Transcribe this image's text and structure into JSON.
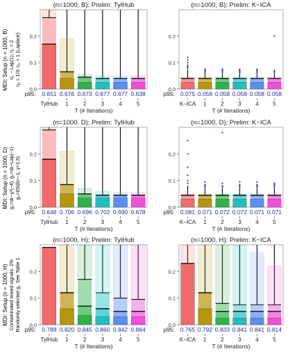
{
  "figure": {
    "rows": [
      {
        "row_label_lines": [
          "MDI: Setup (n = 1000, B)",
          "η₁ ~ Lap(1); η₁ = 2",
          "η₂ = 1/3; η₂ = 1 (Laplace)"
        ]
      },
      {
        "row_label_lines": [
          "MDI: Setup (n = 1000, D)",
          "g₁=sk−χ²(−4); g₂=sk−Lap(−1)",
          "g₃=tlSt(b=−1, γ=1.5)"
        ]
      },
      {
        "row_label_lines": [
          "MDI: Setup (n = 1000, H)",
          "Contaminated mixed signals: 2%",
          "Randomly selected gᵢ. See Table 1"
        ]
      }
    ]
  },
  "chart_data": [
    {
      "type": "bar",
      "title": "(n=1000, B);  Prelim: TylHub",
      "xlabel": "T (# Iterations)",
      "categories": [
        "TylHub",
        "1",
        "2",
        "3",
        "4",
        "5"
      ],
      "p95_label": "p95:",
      "p95": [
        "0.651",
        "0.676",
        "0.673",
        "0.677",
        "0.677",
        "0.638"
      ],
      "ylim": [
        0,
        0.3
      ],
      "yticks": [
        "0.0",
        "0.1",
        "0.2"
      ],
      "colors": [
        "#f26b6b",
        "#b8960c",
        "#2db34a",
        "#20c0c0",
        "#5b8ff0",
        "#f050d8"
      ],
      "bars": [
        {
          "value": 0.17,
          "median": 0.17,
          "upper": 0.27,
          "bar_top": 0.3,
          "whisker": 0.3,
          "outliers": []
        },
        {
          "value": 0.04,
          "median": 0.065,
          "upper": 0.065,
          "bar_top": 0.19,
          "whisker": 0.3,
          "outliers": []
        },
        {
          "value": 0.025,
          "median": 0.045,
          "upper": 0.045,
          "bar_top": 0.055,
          "whisker": 0.3,
          "outliers": []
        },
        {
          "value": 0.025,
          "median": 0.04,
          "upper": 0.04,
          "bar_top": 0.05,
          "whisker": 0.3,
          "outliers": []
        },
        {
          "value": 0.025,
          "median": 0.04,
          "upper": 0.04,
          "bar_top": 0.05,
          "whisker": 0.3,
          "outliers": []
        },
        {
          "value": 0.025,
          "median": 0.04,
          "upper": 0.04,
          "bar_top": 0.05,
          "whisker": 0.3,
          "outliers": []
        }
      ]
    },
    {
      "type": "bar",
      "title": "(n=1000, B);  Prelim: K−ICA",
      "xlabel": "T (# Iterations)",
      "categories": [
        "K−ICA",
        "1",
        "2",
        "3",
        "4",
        "5"
      ],
      "p95_label": "p95:",
      "p95": [
        "0.075",
        "0.058",
        "0.058",
        "0.058",
        "0.058",
        "0.058"
      ],
      "ylim": [
        0,
        0.3
      ],
      "yticks": [
        "0.0",
        "0.1",
        "0.2"
      ],
      "colors": [
        "#f26b6b",
        "#b8960c",
        "#2db34a",
        "#20c0c0",
        "#5b8ff0",
        "#f050d8"
      ],
      "bars": [
        {
          "value": 0.025,
          "median": 0.04,
          "upper": 0.04,
          "bar_top": 0.045,
          "whisker": 0.075,
          "outliers": [
            0.08,
            0.085,
            0.09,
            0.1,
            0.11,
            0.12
          ]
        },
        {
          "value": 0.025,
          "median": 0.04,
          "upper": 0.04,
          "bar_top": 0.045,
          "whisker": 0.058,
          "outliers": [
            0.062,
            0.066,
            0.07,
            0.075
          ]
        },
        {
          "value": 0.025,
          "median": 0.04,
          "upper": 0.04,
          "bar_top": 0.045,
          "whisker": 0.058,
          "outliers": [
            0.062,
            0.066,
            0.07,
            0.075
          ]
        },
        {
          "value": 0.025,
          "median": 0.04,
          "upper": 0.04,
          "bar_top": 0.045,
          "whisker": 0.058,
          "outliers": [
            0.062,
            0.066,
            0.07,
            0.075
          ]
        },
        {
          "value": 0.025,
          "median": 0.04,
          "upper": 0.04,
          "bar_top": 0.045,
          "whisker": 0.058,
          "outliers": [
            0.062,
            0.066,
            0.07,
            0.075
          ]
        },
        {
          "value": 0.025,
          "median": 0.04,
          "upper": 0.04,
          "bar_top": 0.045,
          "whisker": 0.058,
          "outliers": [
            0.062,
            0.066,
            0.07,
            0.2
          ]
        }
      ]
    },
    {
      "type": "bar",
      "title": "(n=1000, D);  Prelim: TylHub",
      "xlabel": "T (# Iterations)",
      "categories": [
        "TylHub",
        "1",
        "2",
        "3",
        "4",
        "5"
      ],
      "p95_label": "p95:",
      "p95": [
        "0.648",
        "0.706",
        "0.696",
        "0.702",
        "0.690",
        "0.678"
      ],
      "ylim": [
        0,
        0.3
      ],
      "yticks": [
        "0.0",
        "0.1",
        "0.2"
      ],
      "colors": [
        "#f26b6b",
        "#b8960c",
        "#2db34a",
        "#20c0c0",
        "#5b8ff0",
        "#f050d8"
      ],
      "bars": [
        {
          "value": 0.18,
          "median": 0.18,
          "upper": 0.29,
          "bar_top": 0.3,
          "whisker": 0.3,
          "outliers": []
        },
        {
          "value": 0.05,
          "median": 0.085,
          "upper": 0.085,
          "bar_top": 0.21,
          "whisker": 0.3,
          "outliers": []
        },
        {
          "value": 0.035,
          "median": 0.05,
          "upper": 0.05,
          "bar_top": 0.07,
          "whisker": 0.3,
          "outliers": []
        },
        {
          "value": 0.035,
          "median": 0.045,
          "upper": 0.045,
          "bar_top": 0.06,
          "whisker": 0.3,
          "outliers": []
        },
        {
          "value": 0.035,
          "median": 0.045,
          "upper": 0.045,
          "bar_top": 0.055,
          "whisker": 0.3,
          "outliers": []
        },
        {
          "value": 0.035,
          "median": 0.045,
          "upper": 0.045,
          "bar_top": 0.055,
          "whisker": 0.3,
          "outliers": []
        }
      ]
    },
    {
      "type": "bar",
      "title": "(n=1000, D);  Prelim: K−ICA",
      "xlabel": "T (# Iterations)",
      "categories": [
        "K−ICA",
        "1",
        "2",
        "3",
        "4",
        "5"
      ],
      "p95_label": "p95:",
      "p95": [
        "0.081",
        "0.071",
        "0.072",
        "0.072",
        "0.071",
        "0.071"
      ],
      "ylim": [
        0,
        0.3
      ],
      "yticks": [
        "0.0",
        "0.1",
        "0.2"
      ],
      "colors": [
        "#f26b6b",
        "#b8960c",
        "#2db34a",
        "#20c0c0",
        "#5b8ff0",
        "#f050d8"
      ],
      "bars": [
        {
          "value": 0.03,
          "median": 0.045,
          "upper": 0.045,
          "bar_top": 0.05,
          "whisker": 0.081,
          "outliers": [
            0.09,
            0.1,
            0.12,
            0.15,
            0.2,
            0.25
          ]
        },
        {
          "value": 0.03,
          "median": 0.045,
          "upper": 0.045,
          "bar_top": 0.05,
          "whisker": 0.071,
          "outliers": [
            0.075,
            0.08,
            0.085,
            0.095
          ]
        },
        {
          "value": 0.03,
          "median": 0.045,
          "upper": 0.045,
          "bar_top": 0.05,
          "whisker": 0.072,
          "outliers": [
            0.076,
            0.08,
            0.09,
            0.28
          ]
        },
        {
          "value": 0.03,
          "median": 0.045,
          "upper": 0.045,
          "bar_top": 0.05,
          "whisker": 0.072,
          "outliers": [
            0.076,
            0.08,
            0.085,
            0.095
          ]
        },
        {
          "value": 0.03,
          "median": 0.045,
          "upper": 0.045,
          "bar_top": 0.05,
          "whisker": 0.071,
          "outliers": [
            0.075,
            0.08,
            0.085,
            0.095
          ]
        },
        {
          "value": 0.03,
          "median": 0.045,
          "upper": 0.045,
          "bar_top": 0.05,
          "whisker": 0.071,
          "outliers": [
            0.075,
            0.08,
            0.085,
            0.09
          ]
        }
      ]
    },
    {
      "type": "bar",
      "title": "(n=1000, H);  Prelim: TylHub",
      "xlabel": "T (# Iterations)",
      "categories": [
        "TylHub",
        "1",
        "2",
        "3",
        "4",
        "5"
      ],
      "p95_label": "p95:",
      "p95": [
        "0.788",
        "0.820",
        "0.845",
        "0.860",
        "0.842",
        "0.864"
      ],
      "ylim": [
        0,
        0.3
      ],
      "yticks": [
        "0.0",
        "0.1",
        "0.2"
      ],
      "colors": [
        "#f26b6b",
        "#b8960c",
        "#2db34a",
        "#20c0c0",
        "#5b8ff0",
        "#f050d8"
      ],
      "bars": [
        {
          "value": 0.29,
          "median": 0.29,
          "upper": 0.29,
          "bar_top": 0.29,
          "whisker": 0.29,
          "outliers": []
        },
        {
          "value": 0.06,
          "median": 0.12,
          "upper": 0.12,
          "bar_top": 0.3,
          "whisker": 0.3,
          "outliers": []
        },
        {
          "value": 0.035,
          "median": 0.07,
          "upper": 0.17,
          "bar_top": 0.3,
          "whisker": 0.3,
          "outliers": []
        },
        {
          "value": 0.03,
          "median": 0.06,
          "upper": 0.12,
          "bar_top": 0.3,
          "whisker": 0.3,
          "outliers": []
        },
        {
          "value": 0.03,
          "median": 0.05,
          "upper": 0.1,
          "bar_top": 0.3,
          "whisker": 0.3,
          "outliers": []
        },
        {
          "value": 0.03,
          "median": 0.05,
          "upper": 0.095,
          "bar_top": 0.3,
          "whisker": 0.3,
          "outliers": []
        }
      ]
    },
    {
      "type": "bar",
      "title": "(n=1000, H);  Prelim: K−ICA",
      "xlabel": "T (# Iterations)",
      "categories": [
        "K−ICA",
        "1",
        "2",
        "3",
        "4",
        "5"
      ],
      "p95_label": "p95:",
      "p95": [
        "0.765",
        "0.792",
        "0.833",
        "0.841",
        "0.841",
        "0.814"
      ],
      "ylim": [
        0,
        0.3
      ],
      "yticks": [
        "0.0",
        "0.1",
        "0.2"
      ],
      "colors": [
        "#f26b6b",
        "#b8960c",
        "#2db34a",
        "#20c0c0",
        "#5b8ff0",
        "#f050d8"
      ],
      "bars": [
        {
          "value": 0.23,
          "median": 0.23,
          "upper": 0.23,
          "bar_top": 0.3,
          "whisker": 0.3,
          "outliers": []
        },
        {
          "value": 0.06,
          "median": 0.12,
          "upper": 0.12,
          "bar_top": 0.3,
          "whisker": 0.3,
          "outliers": []
        },
        {
          "value": 0.025,
          "median": 0.05,
          "upper": 0.08,
          "bar_top": 0.3,
          "whisker": 0.3,
          "outliers": []
        },
        {
          "value": 0.025,
          "median": 0.05,
          "upper": 0.075,
          "bar_top": 0.3,
          "whisker": 0.3,
          "outliers": []
        },
        {
          "value": 0.025,
          "median": 0.05,
          "upper": 0.075,
          "bar_top": 0.27,
          "whisker": 0.3,
          "outliers": []
        },
        {
          "value": 0.025,
          "median": 0.05,
          "upper": 0.075,
          "bar_top": 0.22,
          "whisker": 0.3,
          "outliers": []
        }
      ]
    }
  ]
}
